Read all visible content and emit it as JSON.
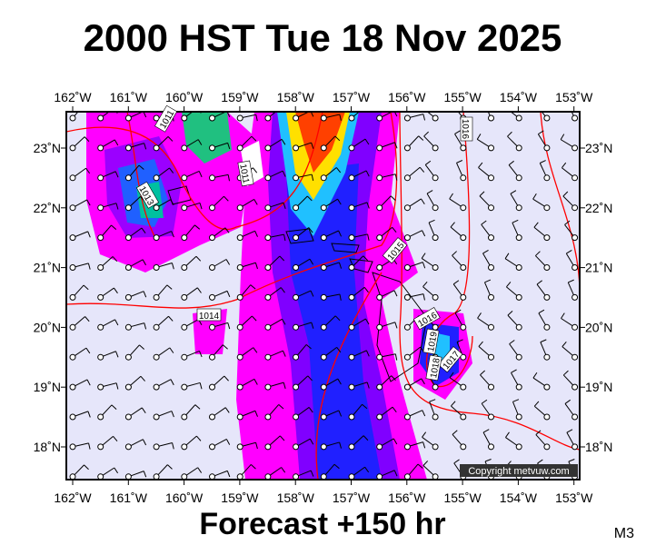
{
  "header": {
    "title": "2000 HST Tue 18 Nov 2025"
  },
  "map": {
    "lon_labels": [
      "162˚W",
      "161˚W",
      "160˚W",
      "159˚W",
      "158˚W",
      "157˚W",
      "156˚W",
      "155˚W",
      "154˚W",
      "153˚W"
    ],
    "lat_labels": [
      "23˚N",
      "22˚N",
      "21˚N",
      "20˚N",
      "19˚N",
      "18˚N"
    ],
    "isobar_labels": [
      "1011",
      "1013",
      "1011",
      "1015",
      "1014",
      "1016",
      "1019",
      "1017",
      "1018",
      "1016"
    ],
    "copyright": "Copyright metvuw.com"
  },
  "footer": {
    "forecast": "Forecast +150 hr",
    "model": "M3"
  }
}
